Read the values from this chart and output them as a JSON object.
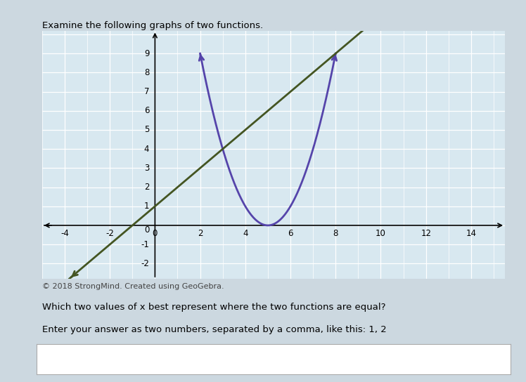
{
  "title": "Examine the following graphs of two functions.",
  "copyright": "© 2018 StrongMind. Created using GeoGebra.",
  "question": "Which two values of x best represent where the two functions are equal?",
  "instruction": "Enter your answer as two numbers, separated by a comma, like this: 1, 2",
  "xlim": [
    -5,
    15.5
  ],
  "ylim": [
    -2.8,
    10.2
  ],
  "xticks": [
    -4,
    -2,
    0,
    2,
    4,
    6,
    8,
    10,
    12,
    14
  ],
  "yticks": [
    -2,
    -1,
    1,
    2,
    3,
    4,
    5,
    6,
    7,
    8,
    9
  ],
  "parabola_color": "#5544aa",
  "line_color": "#445522",
  "parabola_vertex_x": 5,
  "parabola_vertex_y": 0,
  "parabola_a": 1,
  "line_slope": 1,
  "line_intercept": 1,
  "bg_outer": "#ccd8e0",
  "bg_grid": "#d8e8f0",
  "grid_color": "#ffffff",
  "figsize": [
    7.48,
    5.44
  ],
  "dpi": 100
}
